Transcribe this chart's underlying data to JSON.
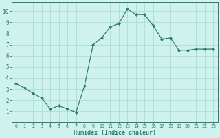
{
  "x": [
    0,
    1,
    2,
    3,
    4,
    5,
    6,
    7,
    8,
    9,
    10,
    11,
    12,
    13,
    14,
    15,
    16,
    17,
    18,
    19,
    20,
    21,
    22,
    23
  ],
  "y": [
    3.5,
    3.1,
    2.6,
    2.2,
    1.2,
    1.5,
    1.2,
    0.9,
    3.3,
    7.0,
    7.6,
    8.6,
    8.9,
    10.2,
    9.7,
    9.7,
    8.7,
    7.5,
    7.6,
    6.5,
    6.5,
    6.6,
    6.6,
    6.6
  ],
  "line_color": "#2d7d6e",
  "marker": "D",
  "marker_size": 2.0,
  "background_color": "#cff2ee",
  "grid_color": "#aaddd8",
  "xlabel": "Humidex (Indice chaleur)",
  "xlim": [
    -0.5,
    23.5
  ],
  "ylim": [
    0,
    10.8
  ],
  "xtick_labels": [
    "0",
    "1",
    "2",
    "3",
    "4",
    "5",
    "6",
    "7",
    "8",
    "9",
    "10",
    "11",
    "12",
    "13",
    "14",
    "15",
    "16",
    "17",
    "18",
    "19",
    "20",
    "21",
    "22",
    "23"
  ],
  "ytick_values": [
    1,
    2,
    3,
    4,
    5,
    6,
    7,
    8,
    9,
    10
  ],
  "axis_color": "#2d7d6e",
  "tick_color": "#2d7d6e",
  "font_family": "monospace",
  "xlabel_fontsize": 6.0,
  "xtick_fontsize": 4.8,
  "ytick_fontsize": 5.5
}
